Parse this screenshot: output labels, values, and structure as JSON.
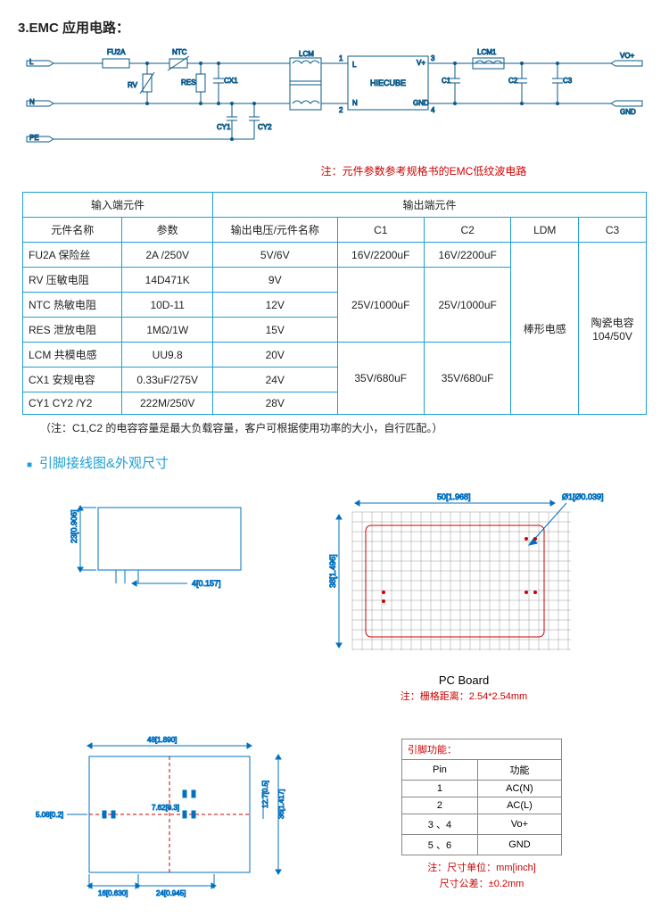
{
  "title": "3.EMC 应用电路：",
  "circuit": {
    "labels": {
      "L": "L",
      "N": "N",
      "PE": "PE",
      "FU2A": "FU2A",
      "NTC": "NTC",
      "RV": "RV",
      "RES": "RES",
      "CX1": "CX1",
      "CY1": "CY1",
      "CY2": "CY2",
      "LCM": "LCM",
      "HIECUBE": "HIECUBE",
      "Vplus": "V+",
      "GND": "GND",
      "LCM1": "LCM1",
      "C1": "C1",
      "C2": "C2",
      "C3": "C3",
      "VOplus": "VO+",
      "GND2": "GND",
      "pin1": "1",
      "pin2": "2",
      "pin3": "3",
      "pin4": "4"
    },
    "colors": {
      "wire": "#0a5a8a",
      "box": "#0a5a8a",
      "text": "#0a5a8a"
    }
  },
  "note1": "注：元件参数参考规格书的EMC低纹波电路",
  "emcTable": {
    "headers": {
      "input": "输入端元件",
      "output": "输出端元件",
      "compName": "元件名称",
      "param": "参数",
      "voltName": "输出电压/元件名称",
      "c1": "C1",
      "c2": "C2",
      "ldm": "LDM",
      "c3": "C3"
    },
    "rows": [
      {
        "name": "FU2A 保险丝",
        "param": "2A /250V",
        "volt": "5V/6V",
        "c1": "16V/2200uF",
        "c2": "16V/2200uF"
      },
      {
        "name": "RV   压敏电阻",
        "param": "14D471K",
        "volt": "9V"
      },
      {
        "name": "NTC 热敏电阻",
        "param": "10D-11",
        "volt": "12V",
        "c1": "25V/1000uF",
        "c2": "25V/1000uF"
      },
      {
        "name": "RES 泄放电阻",
        "param": "1MΩ/1W",
        "volt": "15V"
      },
      {
        "name": "LCM 共模电感",
        "param": "UU9.8",
        "volt": "20V"
      },
      {
        "name": "CX1 安规电容",
        "param": "0.33uF/275V",
        "volt": "24V",
        "c1": "35V/680uF",
        "c2": "35V/680uF"
      },
      {
        "name": "CY1 CY2 /Y2",
        "param": "222M/250V",
        "volt": "28V"
      }
    ],
    "ldm": "棒形电感",
    "c3val": "陶瓷电容\n104/50V"
  },
  "tableNote": "（注：C1,C2 的电容容量是最大负载容量，客户可根据使用功率的大小，自行匹配。）",
  "sectionHeader2": "引脚接线图&外观尺寸",
  "dims": {
    "side": {
      "h": "23[0.906]",
      "pin": "4[0.157]"
    },
    "pcb": {
      "w": "50[1.968]",
      "h": "38[1.496]",
      "hole": "Ø1[Ø0.039]"
    },
    "bottom": {
      "w": "48[1.890]",
      "a": "5.08[0.2]",
      "b": "7.62[0.3]",
      "c": "12.7[0.5]",
      "d": "36[1.417]",
      "e": "16[0.630]",
      "f": "24[0.945]"
    }
  },
  "pcLabel": "PC Board",
  "pcNote": "注：栅格距离：2.54*2.54mm",
  "pinTable": {
    "header": "引脚功能：",
    "cols": {
      "pin": "Pin",
      "func": "功能"
    },
    "rows": [
      {
        "pin": "1",
        "func": "AC(N)"
      },
      {
        "pin": "2",
        "func": "AC(L)"
      },
      {
        "pin": "3 、4",
        "func": "Vo+"
      },
      {
        "pin": "5 、6",
        "func": "GND"
      }
    ]
  },
  "dimNotes": {
    "a": "注：尺寸单位：mm[inch]",
    "b": "尺寸公差：±0.2mm"
  }
}
